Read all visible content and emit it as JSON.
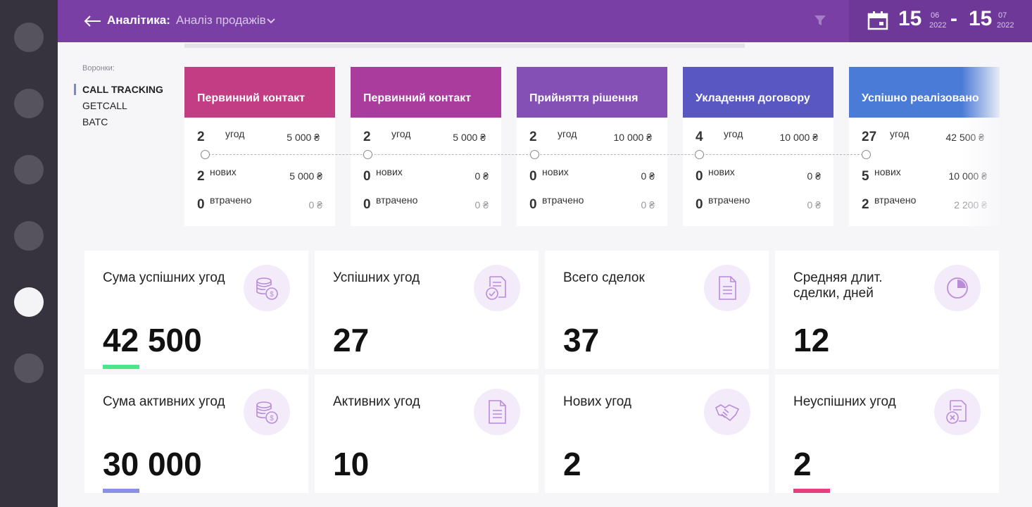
{
  "header": {
    "section": "Аналітика:",
    "report": "Аналіз продажів",
    "date_from": {
      "day": "15",
      "month": "06",
      "year": "2022"
    },
    "date_sep": "-",
    "date_to": {
      "day": "15",
      "month": "07",
      "year": "2022"
    }
  },
  "funnels": {
    "label": "Воронки:",
    "items": [
      "CALL TRACKING",
      "GETCALL",
      "BATC"
    ],
    "active": "CALL TRACKING"
  },
  "stages": [
    {
      "title": "Первинний контакт",
      "deals": "2",
      "deals_label": "угод",
      "deals_amount": "5 000 ₴",
      "new": "2",
      "new_label": "нових",
      "new_amount": "5 000 ₴",
      "lost": "0",
      "lost_label": "втрачено",
      "lost_amount": "0 ₴",
      "color": "#c23d84"
    },
    {
      "title": "Первинний контакт",
      "deals": "2",
      "deals_label": "угод",
      "deals_amount": "5 000 ₴",
      "new": "0",
      "new_label": "нових",
      "new_amount": "0 ₴",
      "lost": "0",
      "lost_label": "втрачено",
      "lost_amount": "0 ₴",
      "color": "#a93c9c"
    },
    {
      "title": "Прийняття рішення",
      "deals": "2",
      "deals_label": "угод",
      "deals_amount": "10 000 ₴",
      "new": "0",
      "new_label": "нових",
      "new_amount": "0 ₴",
      "lost": "0",
      "lost_label": "втрачено",
      "lost_amount": "0 ₴",
      "color": "#8450b5"
    },
    {
      "title": "Укладення договору",
      "deals": "4",
      "deals_label": "угод",
      "deals_amount": "10 000 ₴",
      "new": "0",
      "new_label": "нових",
      "new_amount": "0 ₴",
      "lost": "0",
      "lost_label": "втрачено",
      "lost_amount": "0 ₴",
      "color": "#5957c2"
    },
    {
      "title": "Успішно реалізовано",
      "deals": "27",
      "deals_label": "угод",
      "deals_amount": "42 500 ₴",
      "new": "5",
      "new_label": "нових",
      "new_amount": "10 000 ₴",
      "lost": "2",
      "lost_label": "втрачено",
      "lost_amount": "2 200 ₴",
      "color": "#4a7bd6"
    }
  ],
  "kpis": [
    {
      "title": "Сума успішних угод",
      "value": "42 500",
      "icon": "coins-icon",
      "bar_color": "#4ce68a"
    },
    {
      "title": "Успішних угод",
      "value": "27",
      "icon": "document-check-icon",
      "bar_color": ""
    },
    {
      "title": "Всего сделок",
      "value": "37",
      "icon": "document-icon",
      "bar_color": ""
    },
    {
      "title": "Средняя длит. сделки, дней",
      "value": "12",
      "icon": "pie-icon",
      "bar_color": ""
    },
    {
      "title": "Сума активних угод",
      "value": "30 000",
      "icon": "coins-icon",
      "bar_color": "#8c8fe6"
    },
    {
      "title": "Активних угод",
      "value": "10",
      "icon": "document-icon",
      "bar_color": ""
    },
    {
      "title": "Нових угод",
      "value": "2",
      "icon": "handshake-icon",
      "bar_color": ""
    },
    {
      "title": "Неуспішних угод",
      "value": "2",
      "icon": "document-cross-icon",
      "bar_color": "#e83e7e"
    }
  ],
  "colors": {
    "header": "#7a3fa5",
    "rail": "#36333e",
    "icon_stroke": "#b98bd9"
  }
}
